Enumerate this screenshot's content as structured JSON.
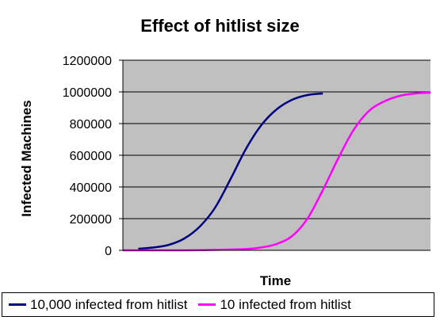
{
  "chart_data": {
    "type": "line",
    "title": "Effect of hitlist size",
    "xlabel": "Time",
    "ylabel": "Infected Machines",
    "ylim": [
      0,
      1200000
    ],
    "yticks": [
      "0",
      "200000",
      "400000",
      "600000",
      "800000",
      "1000000",
      "1200000"
    ],
    "xlim": [
      0,
      100
    ],
    "grid": true,
    "legend_position": "bottom",
    "plot_background": "#c0c0c0",
    "series": [
      {
        "name": "10,000 infected from hitlist",
        "color": "#000080",
        "x": [
          5,
          10,
          15,
          20,
          25,
          30,
          35,
          40,
          45,
          50,
          55,
          60,
          65
        ],
        "y": [
          10000,
          18000,
          35000,
          75000,
          150000,
          270000,
          450000,
          640000,
          790000,
          890000,
          950000,
          980000,
          990000
        ]
      },
      {
        "name": "10 infected from hitlist",
        "color": "#ff00ff",
        "x": [
          0,
          10,
          20,
          30,
          40,
          45,
          50,
          55,
          60,
          65,
          70,
          75,
          80,
          85,
          90,
          95,
          100
        ],
        "y": [
          0,
          0,
          0,
          3000,
          8000,
          18000,
          40000,
          90000,
          200000,
          380000,
          580000,
          760000,
          880000,
          940000,
          975000,
          990000,
          995000
        ]
      }
    ]
  }
}
